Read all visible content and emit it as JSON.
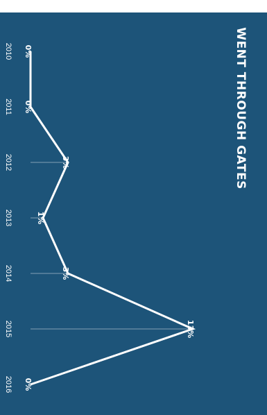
{
  "chart_data": {
    "type": "line",
    "title": "WENT THROUGH GATES",
    "x": [
      "2010",
      "2011",
      "2012",
      "2013",
      "2014",
      "2015",
      "2016"
    ],
    "series": [
      {
        "values": [
          0,
          0,
          3,
          1,
          3,
          13,
          0
        ]
      }
    ],
    "data_labels": [
      "0%",
      "0%",
      "3%",
      "1%",
      "3%",
      "13%",
      "0%"
    ],
    "ylim": [
      0,
      13
    ],
    "grid": false,
    "legend": "none",
    "orientation": "rotated-90-clockwise"
  },
  "colors": {
    "background": "#1d5479",
    "line": "#ffffff",
    "text": "#ffffff"
  }
}
